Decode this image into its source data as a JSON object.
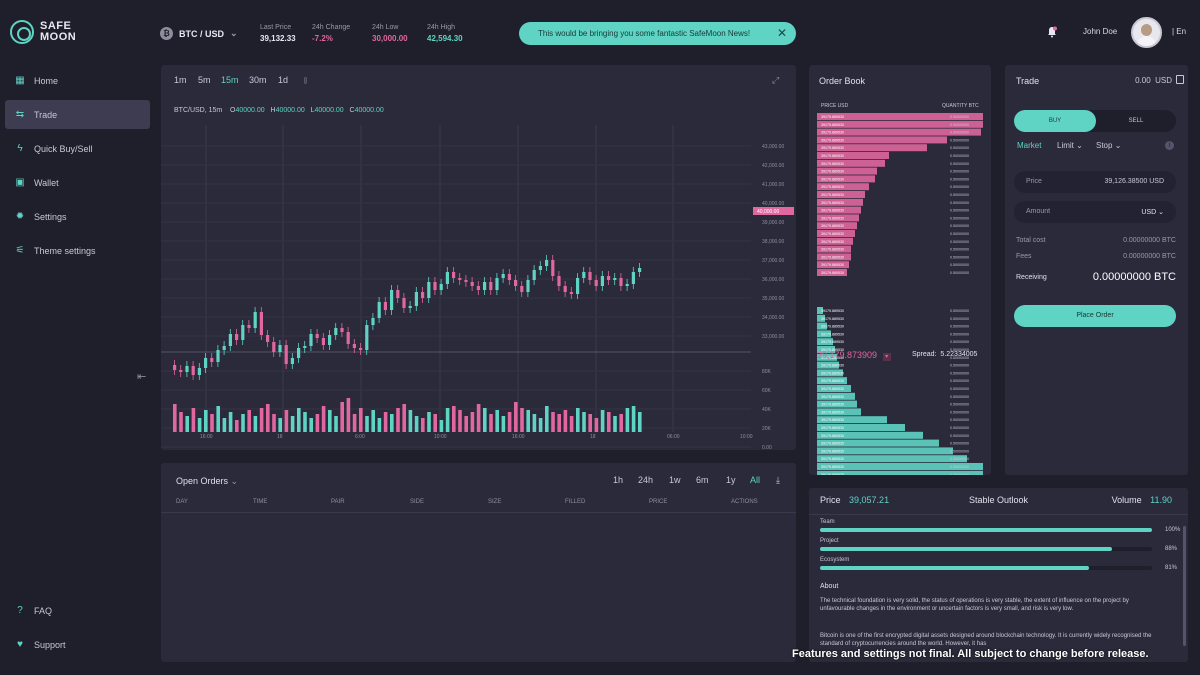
{
  "brand": {
    "line1": "SAFE",
    "line2": "MOON"
  },
  "header": {
    "pair": "BTC / USD",
    "stats": [
      {
        "label": "Last Price",
        "value": "39,132.33",
        "color": "#e9e8f2"
      },
      {
        "label": "24h Change",
        "value": "-7.2%",
        "color": "#e0679f"
      },
      {
        "label": "24h Low",
        "value": "30,000.00",
        "color": "#e0679f"
      },
      {
        "label": "24h High",
        "value": "42,594.30",
        "color": "#5fd3c4"
      }
    ],
    "news": "This would be bringing you some fantastic SafeMoon News!",
    "user": "John Doe",
    "lang": "| En"
  },
  "sidebar": {
    "items": [
      {
        "label": "Home",
        "icon": "grid-icon"
      },
      {
        "label": "Trade",
        "icon": "swap-icon"
      },
      {
        "label": "Quick Buy/Sell",
        "icon": "bolt-icon"
      },
      {
        "label": "Wallet",
        "icon": "wallet-icon"
      },
      {
        "label": "Settings",
        "icon": "gear-icon"
      },
      {
        "label": "Theme settings",
        "icon": "sliders-icon"
      }
    ],
    "bottom": [
      {
        "label": "FAQ",
        "icon": "question-icon"
      },
      {
        "label": "Support",
        "icon": "heart-icon"
      }
    ]
  },
  "chart": {
    "timeframes": [
      "1m",
      "5m",
      "15m",
      "30m",
      "1d"
    ],
    "active_timeframe": "15m",
    "pair_label": "BTC/USD, 15m",
    "ohlc": {
      "o": "40000.00",
      "h": "40000.00",
      "l": "40000.00",
      "c": "40000.00"
    },
    "price_axis": [
      "43,000.00",
      "42,000.00",
      "41,000.00",
      "40,000.00",
      "39,000.00",
      "38,000.00",
      "37,000.00",
      "36,000.00",
      "35,000.00",
      "34,000.00",
      "33,000.00"
    ],
    "current_price_tag": "40,000.00",
    "volume_axis": [
      "80K",
      "60K",
      "40K",
      "20K",
      "0.00"
    ],
    "time_axis": [
      "16:00",
      "18",
      "6:00",
      "10:00",
      "16:00",
      "18",
      "06:00",
      "10:00"
    ],
    "colors": {
      "up": "#5fd3c4",
      "down": "#e0679f"
    }
  },
  "orders": {
    "title": "Open Orders",
    "ranges": [
      "1h",
      "24h",
      "1w",
      "6m",
      "1y",
      "All"
    ],
    "active_range": "All",
    "columns": [
      "DAY",
      "TIME",
      "PAIR",
      "SIDE",
      "SIZE",
      "FILLED",
      "PRICE",
      "ACTIONS"
    ]
  },
  "book": {
    "title": "Order Book",
    "head_price": "PRICE USD",
    "head_qty": "QUANTITY BTC",
    "row_price": "39179.889530",
    "row_qty": "0.50000000",
    "spread_price": "39,179.873909",
    "spread_label": "Spread:",
    "spread_value": "5.22334005"
  },
  "trade": {
    "title": "Trade",
    "balance": "0.00",
    "balance_unit": "USD",
    "buy": "BUY",
    "sell": "SELL",
    "types": [
      "Market",
      "Limit",
      "Stop"
    ],
    "price_label": "Price",
    "price_value": "39,126.38500 USD",
    "amount_label": "Amount",
    "amount_unit": "USD",
    "total_label": "Total cost",
    "total_value": "0.00000000 BTC",
    "fees_label": "Fees",
    "fees_value": "0.00000000 BTC",
    "receiving_label": "Receiving",
    "receiving_value": "0.00000000 BTC",
    "place": "Place Order"
  },
  "outlook": {
    "price_label": "Price",
    "price_value": "39,057.21",
    "center": "Stable Outlook",
    "volume_label": "Volume",
    "volume_value": "11.90",
    "bars": [
      {
        "label": "Team",
        "pct": "100%",
        "fraction": 1.0
      },
      {
        "label": "Project",
        "pct": "88%",
        "fraction": 0.88
      },
      {
        "label": "Ecosystem",
        "pct": "81%",
        "fraction": 0.81
      }
    ],
    "about_title": "About",
    "about_1": "The technical foundation is very solid, the status of operations is very stable, the extent of influence on the project by unfavourable changes in the environment or uncertain factors is very small, and risk is very low.",
    "about_2": "Bitcoin is one of the first encrypted digital assets designed around blockchain technology. It is currently widely recognised the standard of cryptocurrencies around the world. However, it has"
  },
  "disclaimer": "Features and settings not final. All subject to change before release."
}
